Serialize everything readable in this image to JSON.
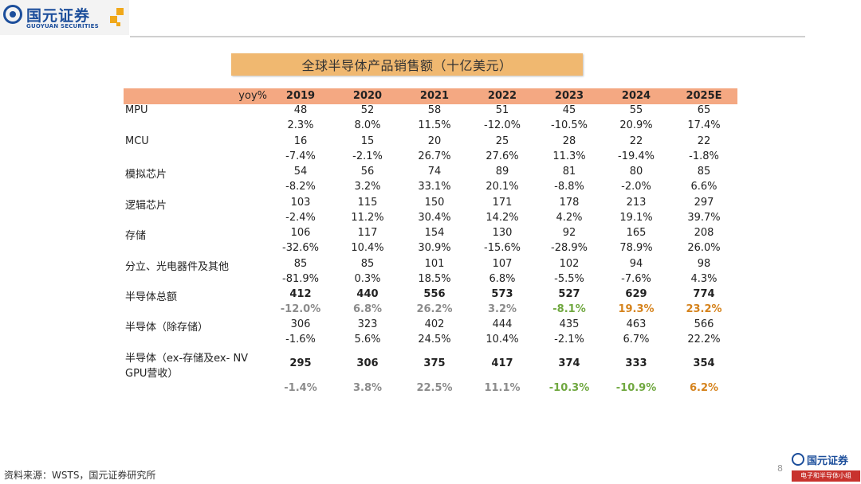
{
  "logo": {
    "cn": "国元证券",
    "en": "GUOYUAN SECURITIES"
  },
  "title": "全球半导体产品销售额（十亿美元）",
  "table": {
    "yoy_label": "yoy%",
    "years": [
      "2019",
      "2020",
      "2021",
      "2022",
      "2023",
      "2024",
      "2025E"
    ],
    "rows": [
      {
        "label": "MPU",
        "values": [
          "48",
          "52",
          "58",
          "51",
          "45",
          "55",
          "65"
        ],
        "yoy": [
          "2.3%",
          "8.0%",
          "11.5%",
          "-12.0%",
          "-10.5%",
          "20.9%",
          "17.4%"
        ]
      },
      {
        "label": "MCU",
        "values": [
          "16",
          "15",
          "20",
          "25",
          "28",
          "22",
          "22"
        ],
        "yoy": [
          "-7.4%",
          "-2.1%",
          "26.7%",
          "27.6%",
          "11.3%",
          "-19.4%",
          "-1.8%"
        ]
      },
      {
        "label": "模拟芯片",
        "values": [
          "54",
          "56",
          "74",
          "89",
          "81",
          "80",
          "85"
        ],
        "yoy": [
          "-8.2%",
          "3.2%",
          "33.1%",
          "20.1%",
          "-8.8%",
          "-2.0%",
          "6.6%"
        ]
      },
      {
        "label": "逻辑芯片",
        "values": [
          "103",
          "115",
          "150",
          "171",
          "178",
          "213",
          "297"
        ],
        "yoy": [
          "-2.4%",
          "11.2%",
          "30.4%",
          "14.2%",
          "4.2%",
          "19.1%",
          "39.7%"
        ]
      },
      {
        "label": "存储",
        "values": [
          "106",
          "117",
          "154",
          "130",
          "92",
          "165",
          "208"
        ],
        "yoy": [
          "-32.6%",
          "10.4%",
          "30.9%",
          "-15.6%",
          "-28.9%",
          "78.9%",
          "26.0%"
        ]
      },
      {
        "label": "分立、光电器件及其他",
        "values": [
          "85",
          "85",
          "101",
          "107",
          "102",
          "94",
          "98"
        ],
        "yoy": [
          "-81.9%",
          "0.3%",
          "18.5%",
          "6.8%",
          "-5.5%",
          "-7.6%",
          "4.3%"
        ]
      },
      {
        "label": "半导体总额",
        "values": [
          "412",
          "440",
          "556",
          "573",
          "527",
          "629",
          "774"
        ],
        "yoy": [
          "-12.0%",
          "6.8%",
          "26.2%",
          "3.2%",
          "-8.1%",
          "19.3%",
          "23.2%"
        ]
      },
      {
        "label": "半导体（除存储）",
        "values": [
          "306",
          "323",
          "402",
          "444",
          "435",
          "463",
          "566"
        ],
        "yoy": [
          "-1.6%",
          "5.6%",
          "24.5%",
          "10.4%",
          "-2.1%",
          "6.7%",
          "22.2%"
        ]
      },
      {
        "label_line1": "半导体（ex-存储及ex- NV",
        "label_line2": "GPU营收）",
        "values": [
          "295",
          "306",
          "375",
          "417",
          "374",
          "333",
          "354"
        ],
        "yoy": [
          "-1.4%",
          "3.8%",
          "22.5%",
          "11.1%",
          "-10.3%",
          "-10.9%",
          "6.2%"
        ]
      }
    ]
  },
  "colors": {
    "header_bg": "#f4a882",
    "title_bg": "#f0b870",
    "gray": "#8c8c8c",
    "green": "#70a840",
    "orange": "#d5831d",
    "brand": "#1c4e9b"
  },
  "source": "资料来源：WSTS，国元证券研究所",
  "page_number": "8",
  "bottom_logo": {
    "cn": "国元证券",
    "tag": "电子和半导体小组"
  }
}
